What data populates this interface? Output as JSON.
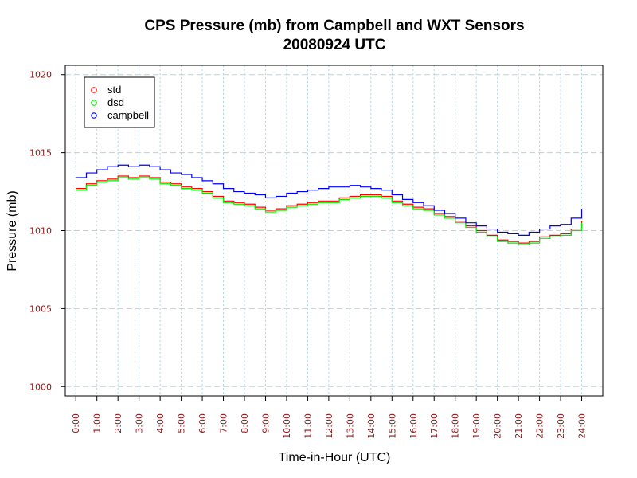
{
  "colors": {
    "std": "#ff0000",
    "dsd": "#00ee00",
    "campbell": "#0000ff",
    "tick_label": "#8b1a1a",
    "grid": "#add8e6"
  },
  "chart_data": {
    "type": "line",
    "title": "CPS Pressure (mb) from Campbell and WXT Sensors",
    "subtitle": "20080924  UTC",
    "xlabel": "Time-in-Hour (UTC)",
    "ylabel": "Pressure (mb)",
    "xlim": [
      -0.5,
      25
    ],
    "ylim": [
      999.4,
      1020.6
    ],
    "grid": true,
    "legend_position": "top-left",
    "x_ticks": [
      0,
      1,
      2,
      3,
      4,
      5,
      6,
      7,
      8,
      9,
      10,
      11,
      12,
      13,
      14,
      15,
      16,
      17,
      18,
      19,
      20,
      21,
      22,
      23,
      24
    ],
    "x_tick_labels": [
      "0:00",
      "1:00",
      "2:00",
      "3:00",
      "4:00",
      "5:00",
      "6:00",
      "7:00",
      "8:00",
      "9:00",
      "10:00",
      "11:00",
      "12:00",
      "13:00",
      "14:00",
      "15:00",
      "16:00",
      "17:00",
      "18:00",
      "19:00",
      "20:00",
      "21:00",
      "22:00",
      "23:00",
      "24:00"
    ],
    "y_ticks": [
      1000,
      1005,
      1010,
      1015,
      1020
    ],
    "y_tick_labels": [
      "1000",
      "1005",
      "1010",
      "1015",
      "1020"
    ],
    "series": [
      {
        "name": "std",
        "color_key": "std",
        "x": [
          0,
          0.5,
          1,
          1.5,
          2,
          2.5,
          3,
          3.5,
          4,
          4.5,
          5,
          5.5,
          6,
          6.5,
          7,
          7.5,
          8,
          8.5,
          9,
          9.5,
          10,
          10.5,
          11,
          11.5,
          12,
          12.5,
          13,
          13.5,
          14,
          14.5,
          15,
          15.5,
          16,
          16.5,
          17,
          17.5,
          18,
          18.5,
          19,
          19.5,
          20,
          20.5,
          21,
          21.5,
          22,
          22.5,
          23,
          23.5,
          24
        ],
        "values": [
          1012.7,
          1013.0,
          1013.2,
          1013.3,
          1013.5,
          1013.4,
          1013.5,
          1013.4,
          1013.1,
          1013.0,
          1012.8,
          1012.7,
          1012.5,
          1012.2,
          1011.9,
          1011.8,
          1011.7,
          1011.5,
          1011.3,
          1011.4,
          1011.6,
          1011.7,
          1011.8,
          1011.9,
          1011.9,
          1012.1,
          1012.2,
          1012.3,
          1012.3,
          1012.2,
          1011.9,
          1011.7,
          1011.5,
          1011.4,
          1011.1,
          1010.9,
          1010.6,
          1010.3,
          1010.0,
          1009.7,
          1009.4,
          1009.3,
          1009.2,
          1009.3,
          1009.6,
          1009.7,
          1009.8,
          1010.1,
          1010.6
        ]
      },
      {
        "name": "dsd",
        "color_key": "dsd",
        "x": [
          0,
          0.5,
          1,
          1.5,
          2,
          2.5,
          3,
          3.5,
          4,
          4.5,
          5,
          5.5,
          6,
          6.5,
          7,
          7.5,
          8,
          8.5,
          9,
          9.5,
          10,
          10.5,
          11,
          11.5,
          12,
          12.5,
          13,
          13.5,
          14,
          14.5,
          15,
          15.5,
          16,
          16.5,
          17,
          17.5,
          18,
          18.5,
          19,
          19.5,
          20,
          20.5,
          21,
          21.5,
          22,
          22.5,
          23,
          23.5,
          24
        ],
        "values": [
          1012.6,
          1012.9,
          1013.1,
          1013.2,
          1013.4,
          1013.3,
          1013.4,
          1013.3,
          1013.0,
          1012.9,
          1012.7,
          1012.6,
          1012.4,
          1012.1,
          1011.8,
          1011.7,
          1011.6,
          1011.4,
          1011.2,
          1011.3,
          1011.5,
          1011.6,
          1011.7,
          1011.8,
          1011.8,
          1012.0,
          1012.1,
          1012.2,
          1012.2,
          1012.1,
          1011.8,
          1011.6,
          1011.4,
          1011.3,
          1011.0,
          1010.8,
          1010.5,
          1010.2,
          1009.9,
          1009.6,
          1009.3,
          1009.2,
          1009.1,
          1009.2,
          1009.5,
          1009.6,
          1009.7,
          1010.0,
          1010.5
        ]
      },
      {
        "name": "campbell",
        "color_key": "campbell",
        "x": [
          0,
          0.5,
          1,
          1.5,
          2,
          2.5,
          3,
          3.5,
          4,
          4.5,
          5,
          5.5,
          6,
          6.5,
          7,
          7.5,
          8,
          8.5,
          9,
          9.5,
          10,
          10.5,
          11,
          11.5,
          12,
          12.5,
          13,
          13.5,
          14,
          14.5,
          15,
          15.5,
          16,
          16.5,
          17,
          17.5,
          18,
          18.5,
          19,
          19.5,
          20,
          20.5,
          21,
          21.5,
          22,
          22.5,
          23,
          23.5,
          24
        ],
        "values": [
          1013.4,
          1013.7,
          1013.9,
          1014.1,
          1014.2,
          1014.1,
          1014.2,
          1014.1,
          1013.9,
          1013.7,
          1013.6,
          1013.4,
          1013.2,
          1013.0,
          1012.7,
          1012.5,
          1012.4,
          1012.3,
          1012.1,
          1012.2,
          1012.4,
          1012.5,
          1012.6,
          1012.7,
          1012.8,
          1012.8,
          1012.9,
          1012.8,
          1012.7,
          1012.6,
          1012.3,
          1012.0,
          1011.8,
          1011.6,
          1011.3,
          1011.1,
          1010.8,
          1010.5,
          1010.3,
          1010.1,
          1009.9,
          1009.8,
          1009.7,
          1009.9,
          1010.1,
          1010.3,
          1010.4,
          1010.8,
          1011.4
        ]
      }
    ]
  }
}
